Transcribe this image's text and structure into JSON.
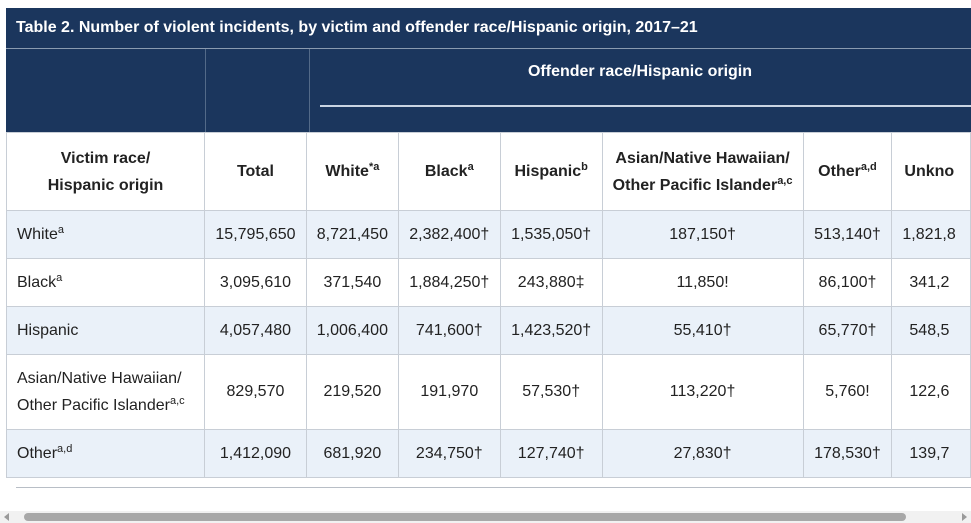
{
  "table": {
    "caption": "Table 2. Number of violent incidents, by victim and offender race/Hispanic origin, 2017–21",
    "group_header": "Offender race/Hispanic origin",
    "columns": [
      {
        "label": "Victim race/",
        "label2": "Hispanic origin",
        "sup": ""
      },
      {
        "label": "Total",
        "sup": ""
      },
      {
        "label": "White",
        "sup": "*a"
      },
      {
        "label": "Black",
        "sup": "a"
      },
      {
        "label": "Hispanic",
        "sup": "b"
      },
      {
        "label": "Asian/Native Hawaiian/",
        "label2": "Other Pacific Islander",
        "sup": "a,c"
      },
      {
        "label": "Other",
        "sup": "a,d"
      },
      {
        "label": "Unkno",
        "sup": ""
      }
    ],
    "rows": [
      {
        "label": "White",
        "sup": "a",
        "cells": [
          "15,795,650",
          "8,721,450",
          "2,382,400†",
          "1,535,050†",
          "187,150†",
          "513,140†",
          "1,821,8"
        ]
      },
      {
        "label": "Black",
        "sup": "a",
        "cells": [
          "3,095,610",
          "371,540",
          "1,884,250†",
          "243,880‡",
          "11,850!",
          "86,100†",
          "341,2"
        ]
      },
      {
        "label": "Hispanic",
        "sup": "",
        "cells": [
          "4,057,480",
          "1,006,400",
          "741,600†",
          "1,423,520†",
          "55,410†",
          "65,770†",
          "548,5"
        ]
      },
      {
        "label": "Asian/Native Hawaiian/",
        "label2": "Other Pacific Islander",
        "sup": "a,c",
        "cells": [
          "829,570",
          "219,520",
          "191,970",
          "57,530†",
          "113,220†",
          "5,760!",
          "122,6"
        ]
      },
      {
        "label": "Other",
        "sup": "a,d",
        "cells": [
          "1,412,090",
          "681,920",
          "234,750†",
          "127,740†",
          "27,830†",
          "178,530†",
          "139,7"
        ]
      }
    ]
  },
  "scroll": {
    "position": 0.0
  }
}
